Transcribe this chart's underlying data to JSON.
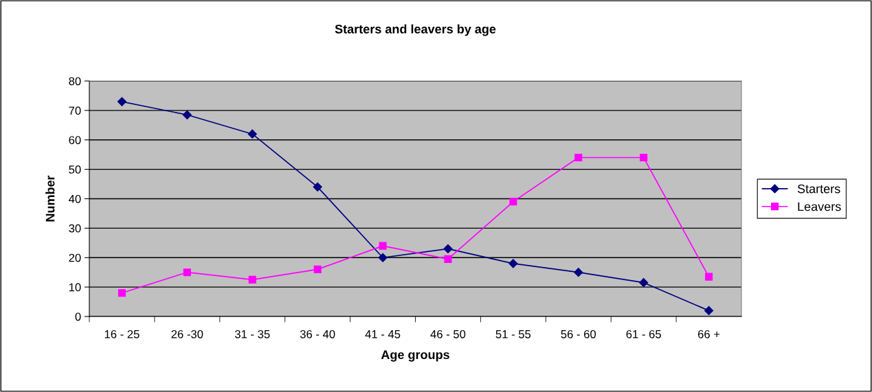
{
  "chart_data": {
    "type": "line",
    "title": "Starters and leavers by age",
    "xlabel": "Age groups",
    "ylabel": "Number",
    "categories": [
      "16 - 25",
      "26 -30",
      "31 - 35",
      "36 - 40",
      "41 - 45",
      "46 - 50",
      "51 - 55",
      "56 - 60",
      "61 - 65",
      "66 +"
    ],
    "series": [
      {
        "name": "Starters",
        "color": "#000080",
        "marker": "diamond",
        "values": [
          73,
          68.5,
          62,
          44,
          20,
          23,
          18,
          15,
          11.5,
          2
        ]
      },
      {
        "name": "Leavers",
        "color": "#ff00ff",
        "marker": "square",
        "values": [
          8,
          15,
          12.5,
          16,
          24,
          19.5,
          39,
          54,
          54,
          13.5
        ]
      }
    ],
    "ylim": [
      0,
      80
    ],
    "yticks": [
      0,
      10,
      20,
      30,
      40,
      50,
      60,
      70,
      80
    ],
    "grid": "y",
    "legend": "right",
    "line_style": "solid"
  }
}
